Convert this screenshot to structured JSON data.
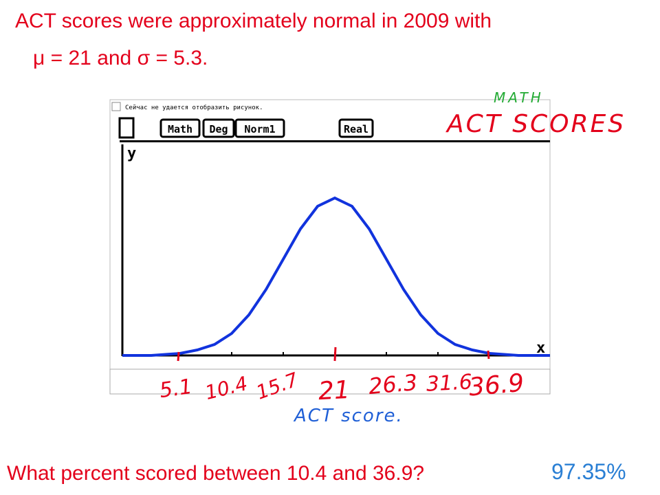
{
  "header": {
    "line1": "ACT scores were approximately normal in 2009 with",
    "line2_mu": "μ",
    "line2_a": " = 21 and ",
    "line2_sigma": "σ",
    "line2_b": " = 5.3."
  },
  "calculator": {
    "missing_image": "Сейчас не удается отобразить рисунок.",
    "buttons": [
      "Math",
      "Deg",
      "Norm1",
      "Real"
    ],
    "y_label": "y",
    "x_label": "x"
  },
  "annotations": {
    "math": "MATH",
    "act_scores": "ACT SCORES",
    "ticks": [
      "5.1",
      "10.4",
      "15.7",
      "21",
      "26.3",
      "31.6",
      "36.9"
    ],
    "axis_title": "ACT score."
  },
  "question": "What percent scored between 10.4 and 36.9?",
  "answer": "97.35%"
}
